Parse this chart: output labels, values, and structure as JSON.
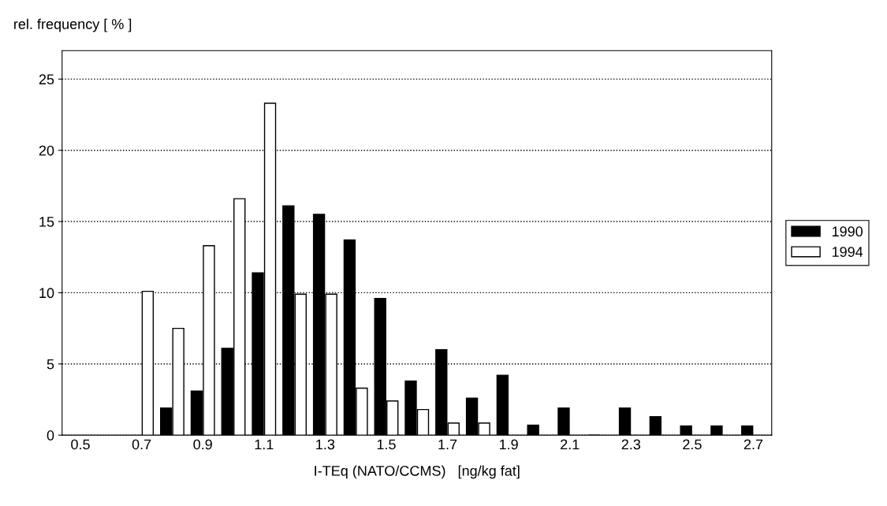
{
  "chart_data": {
    "type": "bar",
    "xlabel": "I-TEq (NATO/CCMS)   [ng/kg fat]",
    "ylabel": "rel. frequency [ % ]",
    "categories": [
      "0.5",
      null,
      "0.7",
      null,
      "0.9",
      null,
      "1.1",
      null,
      "1.3",
      null,
      "1.5",
      null,
      "1.7",
      null,
      "1.9",
      null,
      "2.1",
      null,
      "2.3",
      null,
      "2.5",
      null,
      "2.7"
    ],
    "series": [
      {
        "name": "1990",
        "color": "#000000",
        "values": [
          null,
          null,
          null,
          1.9,
          3.1,
          6.1,
          11.4,
          16.1,
          15.5,
          13.7,
          9.6,
          3.8,
          6.0,
          2.6,
          4.2,
          0.7,
          1.9,
          0,
          1.9,
          1.3,
          0.65,
          0.65,
          0.65
        ]
      },
      {
        "name": "1994",
        "color": "#ffffff",
        "values": [
          null,
          null,
          10.1,
          7.5,
          13.3,
          16.6,
          23.3,
          9.9,
          9.9,
          3.3,
          2.4,
          1.8,
          0.85,
          0.85,
          null,
          null,
          null,
          null,
          null,
          null,
          null,
          null,
          null
        ]
      }
    ],
    "ylim": [
      0,
      27
    ],
    "yticks": [
      0,
      5,
      10,
      15,
      20,
      25
    ],
    "grid": "y",
    "legend": "right"
  }
}
